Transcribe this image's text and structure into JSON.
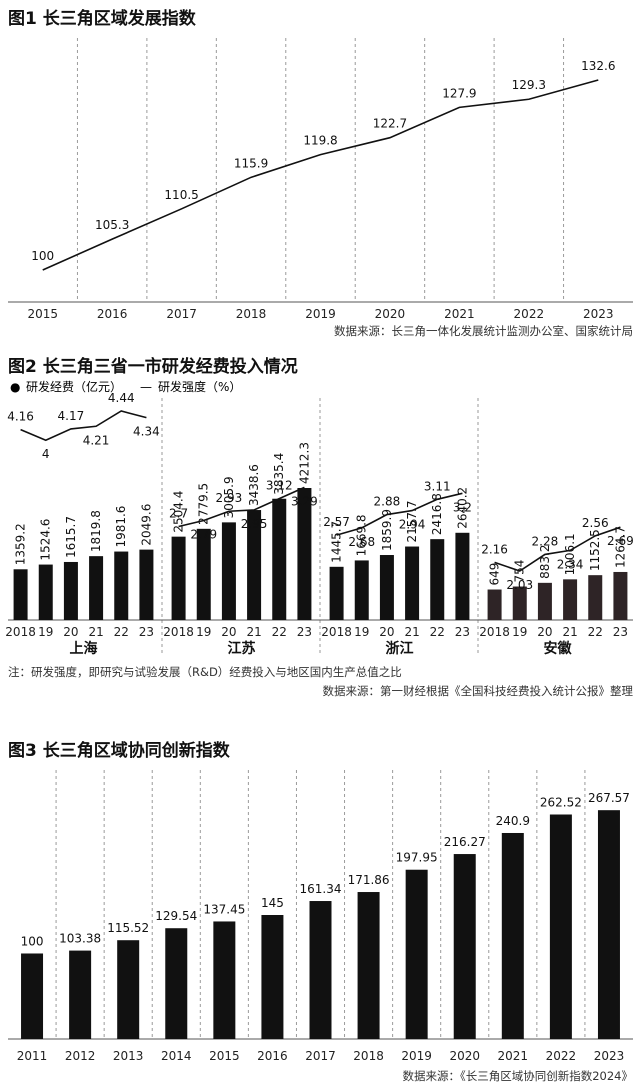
{
  "chart_data": [
    {
      "type": "line",
      "title": "图1 长三角区域发展指数",
      "x": [
        "2015",
        "2016",
        "2017",
        "2018",
        "2019",
        "2020",
        "2021",
        "2022",
        "2023"
      ],
      "values": [
        100,
        105.3,
        110.5,
        115.9,
        119.8,
        122.7,
        127.9,
        129.3,
        132.6
      ],
      "value_labels": [
        "100",
        "105.3",
        "110.5",
        "115.9",
        "119.8",
        "122.7",
        "127.9",
        "129.3",
        "132.6"
      ],
      "ylim": [
        97,
        135
      ],
      "grid": "vertical-dashed",
      "source": "数据来源：长三角一体化发展统计监测办公室、国家统计局"
    },
    {
      "type": "bar",
      "title": "图2 长三角三省一市研发经费投入情况",
      "legend": [
        {
          "marker": "●",
          "label": "研发经费（亿元）"
        },
        {
          "marker": "—",
          "label": "研发强度（%）"
        }
      ],
      "panels": [
        {
          "name": "上海",
          "years": [
            "2018",
            "19",
            "20",
            "21",
            "22",
            "23"
          ],
          "spending": [
            1359.2,
            1524.6,
            1615.7,
            1819.8,
            1981.6,
            2049.6
          ],
          "spending_labels": [
            "1359.2",
            "1524.6",
            "1615.7",
            "1819.8",
            "1981.6",
            "2049.6"
          ],
          "intensity": [
            4.16,
            4,
            4.17,
            4.21,
            4.44,
            4.34
          ],
          "intensity_labels": [
            "4.16",
            "4",
            "4.17",
            "4.21",
            "4.44",
            "4.34"
          ],
          "bar_color": "#111111"
        },
        {
          "name": "江苏",
          "years": [
            "2018",
            "19",
            "20",
            "21",
            "22",
            "23"
          ],
          "spending": [
            2504.4,
            2779.5,
            3005.9,
            3438.6,
            3835.4,
            4212.3
          ],
          "spending_labels": [
            "2504.4",
            "2779.5",
            "3005.9",
            "3438.6",
            "3835.4",
            "4212.3"
          ],
          "intensity": [
            2.7,
            2.79,
            2.93,
            2.95,
            3.12,
            3.29
          ],
          "intensity_labels": [
            "2.7",
            "2.79",
            "2.93",
            "2.95",
            "3.12",
            "3.29"
          ],
          "bar_color": "#111111"
        },
        {
          "name": "浙江",
          "years": [
            "2018",
            "19",
            "20",
            "21",
            "22",
            "23"
          ],
          "spending": [
            1445.7,
            1669.8,
            1859.9,
            2157.7,
            2416.8,
            2640.2
          ],
          "spending_labels": [
            "1445.7",
            "1669.8",
            "1859.9",
            "2157.7",
            "2416.8",
            "2640.2"
          ],
          "intensity": [
            2.57,
            2.68,
            2.88,
            2.94,
            3.11,
            3.2
          ],
          "intensity_labels": [
            "2.57",
            "2.68",
            "2.88",
            "2.94",
            "3.11",
            "3.2"
          ],
          "bar_color": "#111111"
        },
        {
          "name": "安徽",
          "years": [
            "2018",
            "19",
            "20",
            "21",
            "22",
            "23"
          ],
          "spending": [
            649,
            754,
            883.2,
            1006.1,
            1152.5,
            1264.7
          ],
          "spending_labels": [
            "649",
            "754",
            "883.2",
            "1006.1",
            "1152.5",
            "1264.7"
          ],
          "intensity": [
            2.16,
            2.03,
            2.28,
            2.34,
            2.56,
            2.69
          ],
          "intensity_labels": [
            "2.16",
            "2.03",
            "2.28",
            "2.34",
            "2.56",
            "2.69"
          ],
          "bar_color": "#2e2426"
        }
      ],
      "note": "注：研发强度，即研究与试验发展（R&D）经费投入与地区国内生产总值之比",
      "source": "数据来源：第一财经根据《全国科技经费投入统计公报》整理"
    },
    {
      "type": "bar",
      "title": "图3 长三角区域协同创新指数",
      "categories": [
        "2011",
        "2012",
        "2013",
        "2014",
        "2015",
        "2016",
        "2017",
        "2018",
        "2019",
        "2020",
        "2021",
        "2022",
        "2023"
      ],
      "values": [
        100,
        103.38,
        115.52,
        129.54,
        137.45,
        145,
        161.34,
        171.86,
        197.95,
        216.27,
        240.9,
        262.52,
        267.57
      ],
      "value_labels": [
        "100",
        "103.38",
        "115.52",
        "129.54",
        "137.45",
        "145",
        "161.34",
        "171.86",
        "197.95",
        "216.27",
        "240.9",
        "262.52",
        "267.57"
      ],
      "ylim": [
        0,
        290
      ],
      "grid": "vertical-dashed",
      "source": "数据来源：《长三角区域协同创新指数2024》"
    }
  ]
}
